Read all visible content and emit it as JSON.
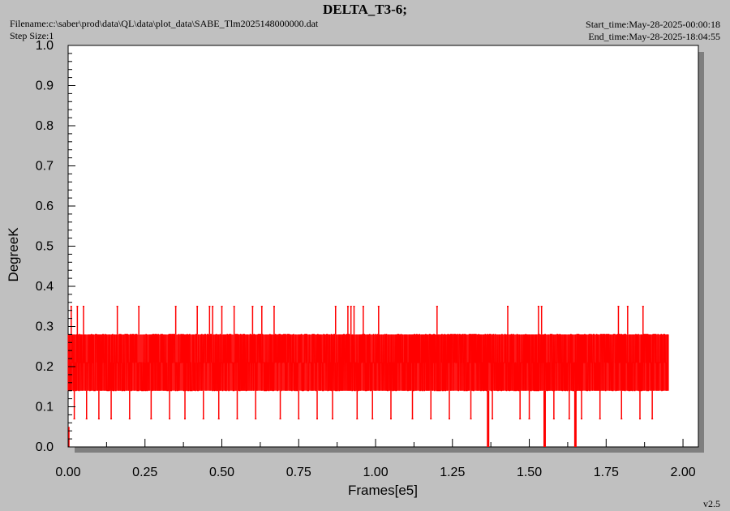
{
  "header": {
    "title": "DELTA_T3-6;",
    "filename": "Filename:c:\\saber\\prod\\data\\QL\\data\\plot_data\\SABE_Tlm2025148000000.dat",
    "step_size": "Step Size:1",
    "start_time": "Start_time:May-28-2025-00:00:18",
    "end_time": "End_time:May-28-2025-18:04:55"
  },
  "footer": {
    "version": "v2.5"
  },
  "colors": {
    "series": "#ff0000",
    "background": "#c0c0c0",
    "plot_area": "#ffffff",
    "shadow": "#7f7f7f"
  },
  "chart_data": {
    "type": "line",
    "title": "DELTA_T3-6;",
    "xlabel": "Frames[e5]",
    "ylabel": "DegreeK",
    "xlim": [
      0.0,
      2.05
    ],
    "ylim": [
      0.0,
      1.0
    ],
    "x_ticks": [
      "0.00",
      "0.25",
      "0.50",
      "0.75",
      "1.00",
      "1.25",
      "1.50",
      "1.75",
      "2.00"
    ],
    "y_ticks": [
      "0.0",
      "0.1",
      "0.2",
      "0.3",
      "0.4",
      "0.5",
      "0.6",
      "0.7",
      "0.8",
      "0.9",
      "1.0"
    ],
    "grid": false,
    "series": [
      {
        "x_range": [
          0.0,
          1.95
        ],
        "levels": [
          0.0,
          0.07,
          0.14,
          0.21,
          0.28,
          0.35
        ],
        "typical_band": [
          0.14,
          0.28
        ],
        "x": [
          0.01,
          0.03,
          0.05,
          0.16,
          0.23,
          0.35,
          0.42,
          0.46,
          0.47,
          0.5,
          0.54,
          0.6,
          0.63,
          0.67,
          0.87,
          0.91,
          0.92,
          0.93,
          0.96,
          1.01,
          1.2,
          1.43,
          1.53,
          1.54,
          1.79,
          1.82,
          1.87,
          0.02,
          0.06,
          0.1,
          0.14,
          0.2,
          0.27,
          0.33,
          0.38,
          0.44,
          0.49,
          0.55,
          0.61,
          0.69,
          0.75,
          0.81,
          0.86,
          0.94,
          0.99,
          1.05,
          1.12,
          1.18,
          1.24,
          1.31,
          1.38,
          1.47,
          1.5,
          1.58,
          1.63,
          1.67,
          1.73,
          1.8,
          1.86,
          1.9,
          1.366,
          1.55,
          1.65
        ],
        "y": [
          0.35,
          0.35,
          0.35,
          0.35,
          0.35,
          0.35,
          0.35,
          0.35,
          0.35,
          0.35,
          0.35,
          0.35,
          0.35,
          0.35,
          0.35,
          0.35,
          0.35,
          0.35,
          0.35,
          0.35,
          0.35,
          0.35,
          0.35,
          0.35,
          0.35,
          0.35,
          0.35,
          0.07,
          0.07,
          0.07,
          0.07,
          0.07,
          0.07,
          0.07,
          0.07,
          0.07,
          0.07,
          0.07,
          0.07,
          0.07,
          0.07,
          0.07,
          0.07,
          0.07,
          0.07,
          0.07,
          0.07,
          0.07,
          0.07,
          0.07,
          0.07,
          0.07,
          0.07,
          0.07,
          0.07,
          0.07,
          0.07,
          0.07,
          0.07,
          0.07,
          0.0,
          0.0,
          0.0
        ]
      }
    ]
  }
}
